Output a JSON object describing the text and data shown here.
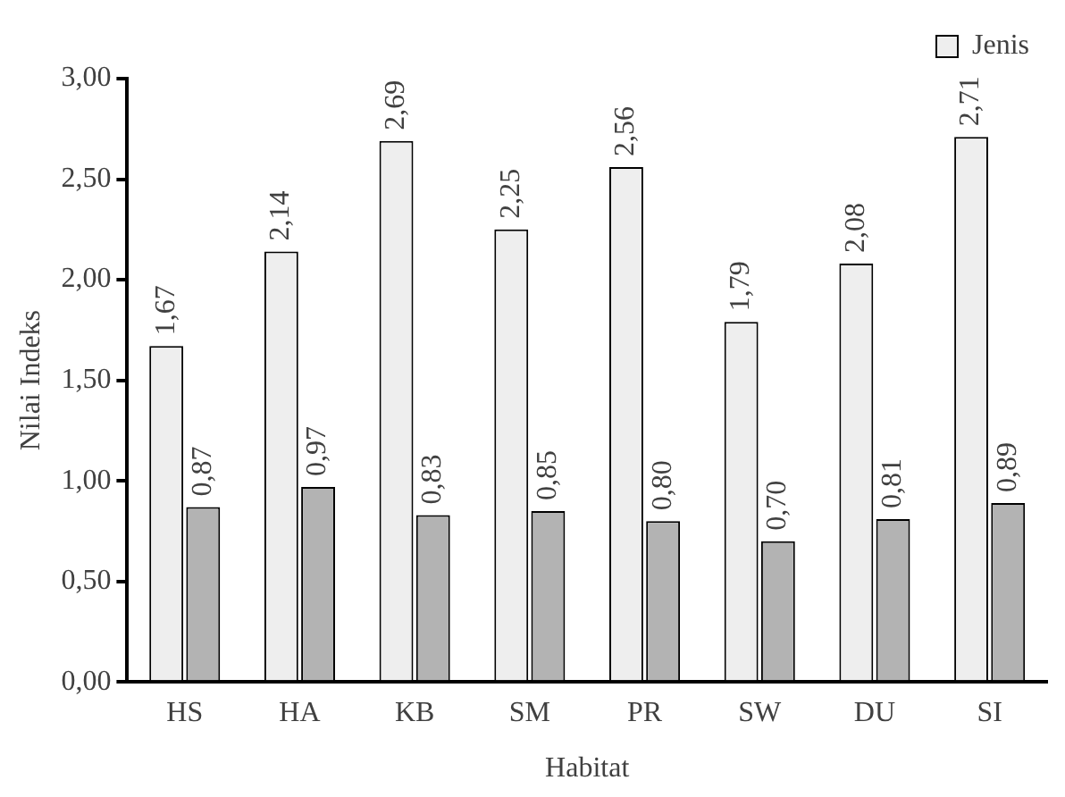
{
  "chart_data": {
    "type": "bar",
    "xlabel": "Habitat",
    "ylabel": "Nilai Indeks",
    "categories": [
      "HS",
      "HA",
      "KB",
      "SM",
      "PR",
      "SW",
      "DU",
      "SI"
    ],
    "series": [
      {
        "name": "Jenis",
        "color": "#eeeeee",
        "values": [
          1.67,
          2.14,
          2.69,
          2.25,
          2.56,
          1.79,
          2.08,
          2.71
        ],
        "value_labels": [
          "1,67",
          "2,14",
          "2,69",
          "2,25",
          "2,56",
          "1,79",
          "2,08",
          "2,71"
        ]
      },
      {
        "color": "#b3b3b3",
        "values": [
          0.87,
          0.97,
          0.83,
          0.85,
          0.8,
          0.7,
          0.81,
          0.89
        ],
        "value_labels": [
          "0,87",
          "0,97",
          "0,83",
          "0,85",
          "0,80",
          "0,70",
          "0,81",
          "0,89"
        ]
      }
    ],
    "ylim": [
      0,
      3
    ],
    "yticks": [
      {
        "value": 0,
        "label": "0,00"
      },
      {
        "value": 0.5,
        "label": "0,50"
      },
      {
        "value": 1,
        "label": "1,00"
      },
      {
        "value": 1.5,
        "label": "1,50"
      },
      {
        "value": 2,
        "label": "2,00"
      },
      {
        "value": 2.5,
        "label": "2,50"
      },
      {
        "value": 3,
        "label": "3,00"
      }
    ],
    "grid": false,
    "legend": "top right"
  }
}
